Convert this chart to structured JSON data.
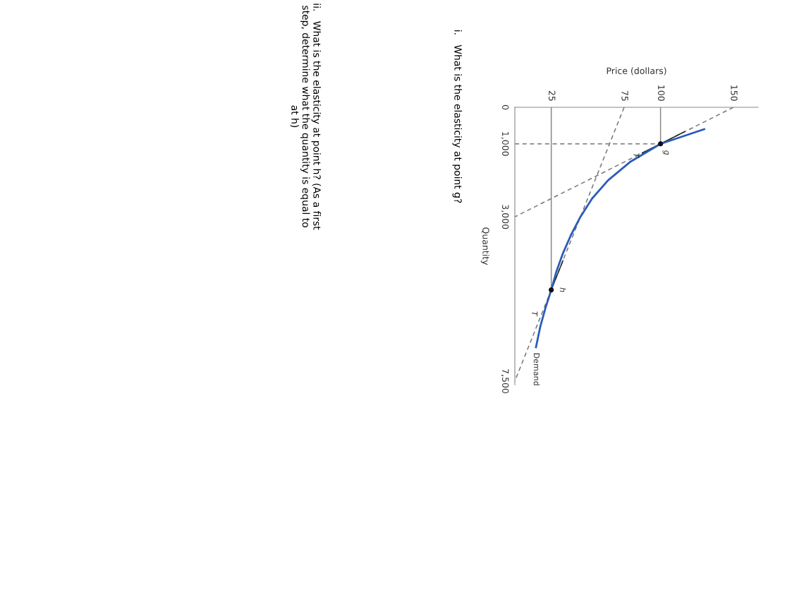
{
  "chart_data": {
    "type": "line",
    "xlabel": "Price (dollars)",
    "ylabel": "Quantity",
    "xlim": [
      0,
      167
    ],
    "ylim": [
      7600,
      0
    ],
    "xticks": [
      25,
      75,
      100,
      150
    ],
    "yticks": [
      0,
      {
        "value": 1000,
        "label": "1,000"
      },
      {
        "value": 3000,
        "label": "3,000"
      },
      {
        "value": 7500,
        "label": "7,500"
      }
    ],
    "grid": false,
    "series": [
      {
        "name": "Demand",
        "color": "#2b5cb8",
        "x": [
          130,
          100,
          79,
          64,
          53,
          45,
          38.5,
          33,
          28.5,
          25,
          21,
          17.5,
          14.5
        ],
        "values": [
          600,
          1000,
          1500,
          2000,
          2500,
          3000,
          3500,
          4000,
          4500,
          5000,
          5500,
          6000,
          6570
        ]
      },
      {
        "color": "#777777",
        "line_style": "dashed",
        "x": [
          150,
          0
        ],
        "values": [
          0,
          3000
        ]
      },
      {
        "color": "#777777",
        "line_style": "dashed",
        "x": [
          75,
          0
        ],
        "values": [
          0,
          7500
        ]
      },
      {
        "color": "#777777",
        "line_style": "dashed",
        "x": [
          0,
          100
        ],
        "values": [
          1000,
          1000
        ]
      },
      {
        "color": "#888888",
        "x": [
          100,
          100
        ],
        "values": [
          0,
          1000
        ]
      },
      {
        "color": "#888888",
        "x": [
          25,
          25
        ],
        "values": [
          0,
          5000
        ]
      },
      {
        "color": "#222222",
        "x": [
          116.5,
          87.5
        ],
        "values": [
          670,
          1250
        ]
      },
      {
        "color": "#222222",
        "x": [
          33,
          24
        ],
        "values": [
          4200,
          5100
        ]
      },
      {
        "type": "scatter",
        "color": "#111111",
        "marker": "circle",
        "x": [
          100,
          25
        ],
        "values": [
          1000,
          5000
        ]
      }
    ],
    "annotations": [
      {
        "text": "g",
        "x": 100,
        "y": 1000
      },
      {
        "text": "T",
        "x": 87,
        "y": 1260
      },
      {
        "text": "h",
        "x": 25,
        "y": 5000
      },
      {
        "text": "T",
        "x": 18.5,
        "y": 5650
      },
      "i.   What is the elasticity at point g?",
      "ii.   What is the elasticity at point h? (As a first step, determine what the quantity is equal to at h)"
    ]
  }
}
